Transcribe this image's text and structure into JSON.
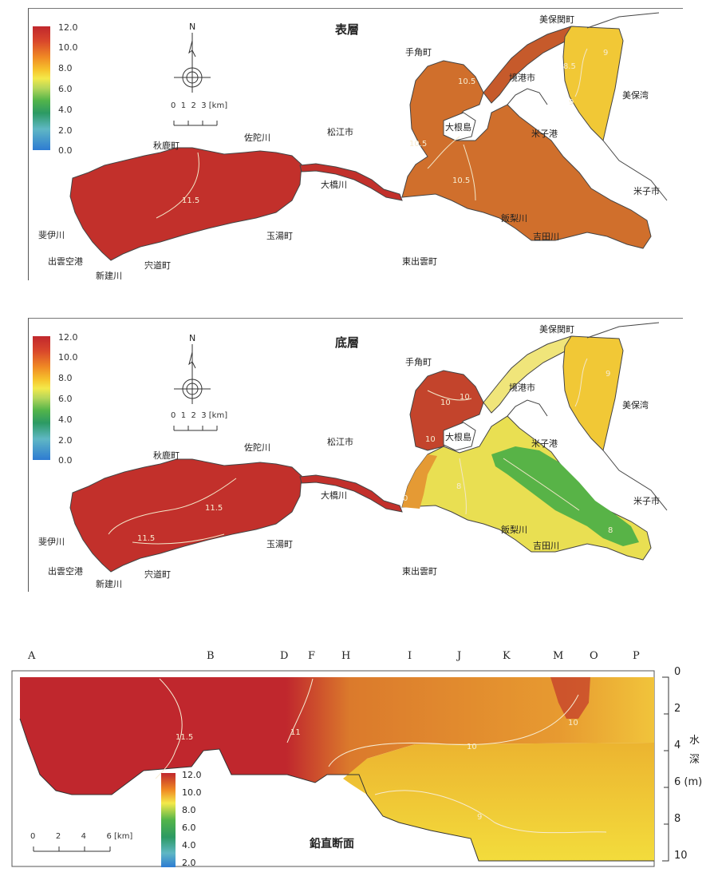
{
  "legend": {
    "ticks": [
      "12.0",
      "10.0",
      "8.0",
      "6.0",
      "4.0",
      "2.0",
      "0.0"
    ]
  },
  "compass": {
    "north": "N"
  },
  "map_scale": {
    "ticks": [
      "0",
      "1",
      "2",
      "3"
    ],
    "unit": "[km]"
  },
  "surface": {
    "title": "表層",
    "places": {
      "mihonoseki": "美保関町",
      "tenogaku": "手角町",
      "sakaiminato": "境港市",
      "mihowan": "美保湾",
      "sadagawa": "佐陀川",
      "matsue": "松江市",
      "daikonjima": "大根島",
      "yonago_port": "米子港",
      "akashika": "秋鹿町",
      "ohashigawa": "大橋川",
      "yonago": "米子市",
      "iinashigawa": "飯梨川",
      "hiikawa": "斐伊川",
      "tamayu": "玉湯町",
      "yoshidagawa": "吉田川",
      "izumo_airport": "出雲空港",
      "shinji": "宍道町",
      "higashiizumo": "東出雲町",
      "shindategawa": "新建川"
    },
    "contours": [
      "11.5",
      "10.5",
      "10.5",
      "10.5",
      "9.5",
      "9",
      "9",
      "8.5"
    ]
  },
  "bottom": {
    "title": "底層",
    "places": {
      "mihonoseki": "美保関町",
      "tenogaku": "手角町",
      "sakaiminato": "境港市",
      "mihowan": "美保湾",
      "sadagawa": "佐陀川",
      "matsue": "松江市",
      "daikonjima": "大根島",
      "yonago_port": "米子港",
      "akashika": "秋鹿町",
      "ohashigawa": "大橋川",
      "yonago": "米子市",
      "iinashigawa": "飯梨川",
      "hiikawa": "斐伊川",
      "tamayu": "玉湯町",
      "yoshidagawa": "吉田川",
      "izumo_airport": "出雲空港",
      "shinji": "宍道町",
      "higashiizumo": "東出雲町",
      "shindategawa": "新建川"
    },
    "contours": [
      "11.5",
      "11.5",
      "10",
      "10",
      "10",
      "9",
      "8",
      "8",
      "0"
    ]
  },
  "section": {
    "title": "鉛直断面",
    "columns": [
      "A",
      "B",
      "D",
      "F",
      "H",
      "I",
      "J",
      "K",
      "M",
      "O",
      "P"
    ],
    "depth_ticks": [
      "0",
      "2",
      "4",
      "6 (m)",
      "8",
      "10"
    ],
    "axis_title_1": "水",
    "axis_title_2": "深",
    "scale": {
      "ticks": [
        "0",
        "2",
        "4",
        "6"
      ],
      "unit": "[km]"
    },
    "legend_ticks": [
      "12.0",
      "10.0",
      "8.0",
      "6.0",
      "4.0",
      "2.0"
    ],
    "contours": [
      "11.5",
      "11",
      "10",
      "10",
      "9"
    ]
  },
  "colors": {
    "deep_red": "#c0272d",
    "orange": "#d8712f",
    "yellow": "#f2d43a",
    "green": "#4fb04a",
    "lime": "#d7e24a"
  }
}
